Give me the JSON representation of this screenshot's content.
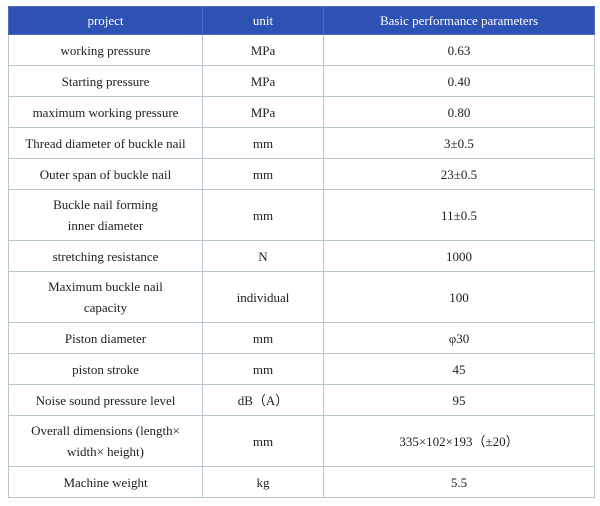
{
  "table": {
    "headers": {
      "project": "project",
      "unit": "unit",
      "value": "Basic performance parameters"
    },
    "rows": [
      {
        "project": "working pressure",
        "unit": "MPa",
        "value": "0.63"
      },
      {
        "project": "Starting pressure",
        "unit": "MPa",
        "value": "0.40"
      },
      {
        "project": "maximum working pressure",
        "unit": "MPa",
        "value": "0.80"
      },
      {
        "project": "Thread diameter of buckle nail",
        "unit": "mm",
        "value": "3±0.5"
      },
      {
        "project": "Outer span of buckle nail",
        "unit": "mm",
        "value": "23±0.5"
      },
      {
        "project": "Buckle nail forming\ninner diameter",
        "unit": "mm",
        "value": "11±0.5"
      },
      {
        "project": "stretching resistance",
        "unit": "N",
        "value": "1000"
      },
      {
        "project": "Maximum buckle nail\ncapacity",
        "unit": "individual",
        "value": "100"
      },
      {
        "project": "Piston diameter",
        "unit": "mm",
        "value": "φ30"
      },
      {
        "project": "piston stroke",
        "unit": "mm",
        "value": "45"
      },
      {
        "project": "Noise sound pressure level",
        "unit": "dB（A）",
        "value": "95"
      },
      {
        "project": "Overall dimensions (length×\nwidth× height)",
        "unit": "mm",
        "value": "335×102×193（±20）"
      },
      {
        "project": "Machine weight",
        "unit": "kg",
        "value": "5.5"
      }
    ],
    "colors": {
      "header_bg": "#2d52b4",
      "header_divider": "#4c6abf",
      "header_text": "#ffffff",
      "grid": "#b8c6d0",
      "text": "#1e1e1e",
      "page_bg": "#ffffff"
    }
  }
}
